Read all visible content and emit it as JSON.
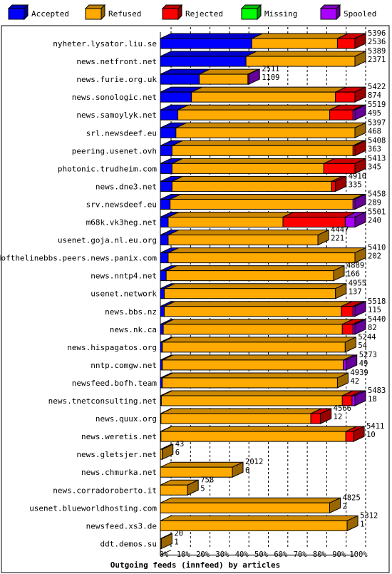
{
  "chart_data": {
    "type": "bar",
    "title": "Outgoing feeds (innfeed) by articles",
    "xlabel": "Outgoing feeds (innfeed) by articles",
    "orientation": "horizontal",
    "stacked": true,
    "xlim": [
      0,
      100
    ],
    "x_unit": "%",
    "grid": true,
    "legend_position": "top",
    "x_ticks": [
      "0%",
      "10%",
      "20%",
      "30%",
      "40%",
      "50%",
      "60%",
      "70%",
      "80%",
      "90%",
      "100%"
    ],
    "series": [
      {
        "name": "Accepted",
        "color": "#0000ff"
      },
      {
        "name": "Refused",
        "color": "#ffaa00"
      },
      {
        "name": "Rejected",
        "color": "#ff0000"
      },
      {
        "name": "Missing",
        "color": "#00ff00"
      },
      {
        "name": "Spooled",
        "color": "#aa00ff"
      }
    ],
    "rows": [
      {
        "host": "nyheter.lysator.liu.se",
        "total": "5396",
        "accepted": "2536",
        "pct": [
          47,
          44,
          9,
          0,
          0
        ]
      },
      {
        "host": "news.netfront.net",
        "total": "5389",
        "accepted": "2371",
        "pct": [
          44,
          56,
          0,
          0,
          0
        ]
      },
      {
        "host": "news.furie.org.uk",
        "total": "2511",
        "accepted": "1109",
        "pct": [
          20,
          25,
          0,
          0,
          0.5
        ]
      },
      {
        "host": "news.sonologic.net",
        "total": "5422",
        "accepted": "874",
        "pct": [
          16,
          74,
          10,
          0,
          0
        ]
      },
      {
        "host": "news.samoylyk.net",
        "total": "5519",
        "accepted": "495",
        "pct": [
          9,
          78,
          12,
          0,
          1
        ]
      },
      {
        "host": "srl.newsdeef.eu",
        "total": "5397",
        "accepted": "468",
        "pct": [
          8,
          92,
          0,
          0,
          0
        ]
      },
      {
        "host": "peering.usenet.ovh",
        "total": "5408",
        "accepted": "363",
        "pct": [
          6,
          93,
          1,
          0,
          0
        ]
      },
      {
        "host": "photonic.trudheim.com",
        "total": "5413",
        "accepted": "345",
        "pct": [
          6,
          78,
          16,
          0,
          0
        ]
      },
      {
        "host": "news.dne3.net",
        "total": "4910",
        "accepted": "335",
        "pct": [
          6,
          82,
          2,
          0,
          0
        ]
      },
      {
        "host": "srv.newsdeef.eu",
        "total": "5458",
        "accepted": "289",
        "pct": [
          5,
          94,
          0,
          0,
          1
        ]
      },
      {
        "host": "m68k.vk3heg.net",
        "total": "5501",
        "accepted": "240",
        "pct": [
          4,
          59,
          32,
          0,
          5
        ]
      },
      {
        "host": "usenet.goja.nl.eu.org",
        "total": "4447",
        "accepted": "221",
        "pct": [
          4,
          77,
          0,
          0,
          0
        ]
      },
      {
        "host": "endofthelinebbs.peers.news.panix.com",
        "total": "5410",
        "accepted": "202",
        "pct": [
          4,
          96,
          0,
          0,
          0
        ]
      },
      {
        "host": "news.nntp4.net",
        "total": "4889",
        "accepted": "166",
        "pct": [
          3,
          86,
          0,
          0,
          0
        ]
      },
      {
        "host": "usenet.network",
        "total": "4955",
        "accepted": "137",
        "pct": [
          2,
          88,
          0,
          0,
          0
        ]
      },
      {
        "host": "news.bbs.nz",
        "total": "5518",
        "accepted": "115",
        "pct": [
          2,
          91,
          6,
          0,
          1
        ]
      },
      {
        "host": "news.nk.ca",
        "total": "5440",
        "accepted": "82",
        "pct": [
          1.5,
          92,
          5.5,
          0,
          1
        ]
      },
      {
        "host": "news.hispagatos.org",
        "total": "5244",
        "accepted": "54",
        "pct": [
          1,
          94,
          0,
          0,
          0
        ]
      },
      {
        "host": "nntp.comgw.net",
        "total": "5273",
        "accepted": "49",
        "pct": [
          1,
          93,
          0,
          0,
          1.5
        ]
      },
      {
        "host": "newsfeed.bofh.team",
        "total": "4939",
        "accepted": "42",
        "pct": [
          1,
          90,
          0,
          0,
          0
        ]
      },
      {
        "host": "news.tnetconsulting.net",
        "total": "5483",
        "accepted": "18",
        "pct": [
          0.5,
          93,
          5,
          0,
          1.5
        ]
      },
      {
        "host": "news.quux.org",
        "total": "4566",
        "accepted": "12",
        "pct": [
          0.3,
          77,
          5,
          0,
          0
        ]
      },
      {
        "host": "news.weretis.net",
        "total": "5411",
        "accepted": "10",
        "pct": [
          0.3,
          95,
          4,
          0,
          0
        ]
      },
      {
        "host": "news.gletsjer.net",
        "total": "43",
        "accepted": "6",
        "pct": [
          0,
          1,
          0,
          0,
          0
        ]
      },
      {
        "host": "news.chmurka.net",
        "total": "2012",
        "accepted": "6",
        "pct": [
          0,
          37,
          0,
          0,
          0
        ]
      },
      {
        "host": "news.corradoroberto.it",
        "total": "758",
        "accepted": "5",
        "pct": [
          0,
          14,
          0,
          0,
          0
        ]
      },
      {
        "host": "usenet.blueworldhosting.com",
        "total": "4825",
        "accepted": "2",
        "pct": [
          0,
          87,
          0,
          0,
          0
        ]
      },
      {
        "host": "newsfeed.xs3.de",
        "total": "5312",
        "accepted": "1",
        "pct": [
          0,
          96,
          0,
          0,
          0
        ]
      },
      {
        "host": "ddt.demos.su",
        "total": "20",
        "accepted": "1",
        "pct": [
          0,
          0.5,
          0,
          0,
          0
        ]
      }
    ]
  }
}
